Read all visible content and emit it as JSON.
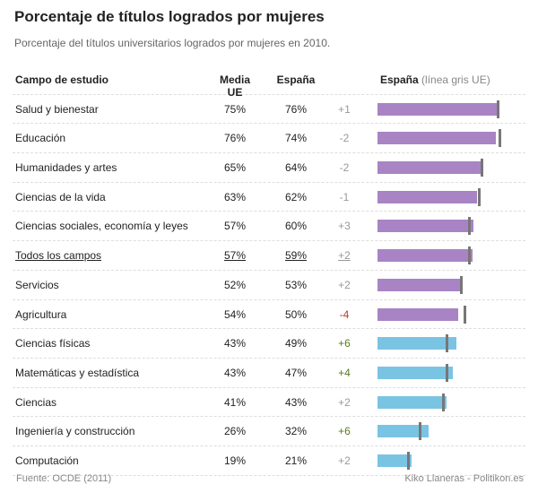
{
  "title": "Porcentaje de títulos logrados por mujeres",
  "subtitle": "Porcentaje del títulos universitarios logrados por mujeres en 2010.",
  "headers": {
    "field": "Campo de estudio",
    "eu": "Media UE",
    "es": "España",
    "chart": "España",
    "chart_note": "(línea gris UE)"
  },
  "colors": {
    "above_eu_bar": "#a884c4",
    "below_eu_bar": "#7ac4e3",
    "positive": "#5a7a1e",
    "negative": "#c0392b",
    "neutral": "#999999",
    "marker": "#777777"
  },
  "chart_data": {
    "type": "table",
    "title": "Porcentaje de títulos logrados por mujeres",
    "rows": [
      {
        "field": "Salud y bienestar",
        "eu": 75,
        "es": 76,
        "eu_label": "75%",
        "es_label": "76%",
        "diff": "+1"
      },
      {
        "field": "Educación",
        "eu": 76,
        "es": 74,
        "eu_label": "76%",
        "es_label": "74%",
        "diff": "-2"
      },
      {
        "field": "Humanidades y artes",
        "eu": 65,
        "es": 64,
        "eu_label": "65%",
        "es_label": "64%",
        "diff": "-2"
      },
      {
        "field": "Ciencias de la vida",
        "eu": 63,
        "es": 62,
        "eu_label": "63%",
        "es_label": "62%",
        "diff": "-1"
      },
      {
        "field": "Ciencias sociales, economía y leyes",
        "eu": 57,
        "es": 60,
        "eu_label": "57%",
        "es_label": "60%",
        "diff": "+3"
      },
      {
        "field": "Todos los campos",
        "eu": 57,
        "es": 59,
        "eu_label": "57%",
        "es_label": "59%",
        "diff": "+2",
        "total": true
      },
      {
        "field": "Servicios",
        "eu": 52,
        "es": 53,
        "eu_label": "52%",
        "es_label": "53%",
        "diff": "+2"
      },
      {
        "field": "Agricultura",
        "eu": 54,
        "es": 50,
        "eu_label": "54%",
        "es_label": "50%",
        "diff": "-4",
        "tone": "negative"
      },
      {
        "field": "Ciencias físicas",
        "eu": 43,
        "es": 49,
        "eu_label": "43%",
        "es_label": "49%",
        "diff": "+6",
        "tone": "positive",
        "blue": true
      },
      {
        "field": "Matemáticas y estadística",
        "eu": 43,
        "es": 47,
        "eu_label": "43%",
        "es_label": "47%",
        "diff": "+4",
        "tone": "positive",
        "blue": true
      },
      {
        "field": "Ciencias",
        "eu": 41,
        "es": 43,
        "eu_label": "41%",
        "es_label": "43%",
        "diff": "+2",
        "blue": true
      },
      {
        "field": "Ingeniería y construcción",
        "eu": 26,
        "es": 32,
        "eu_label": "26%",
        "es_label": "32%",
        "diff": "+6",
        "tone": "positive",
        "blue": true
      },
      {
        "field": "Computación",
        "eu": 19,
        "es": 21,
        "eu_label": "19%",
        "es_label": "21%",
        "diff": "+2",
        "blue": true
      }
    ]
  },
  "footer": {
    "source": "Fuente: OCDE (2011)",
    "credit": "Kiko Llaneras  - Politikon.es"
  }
}
